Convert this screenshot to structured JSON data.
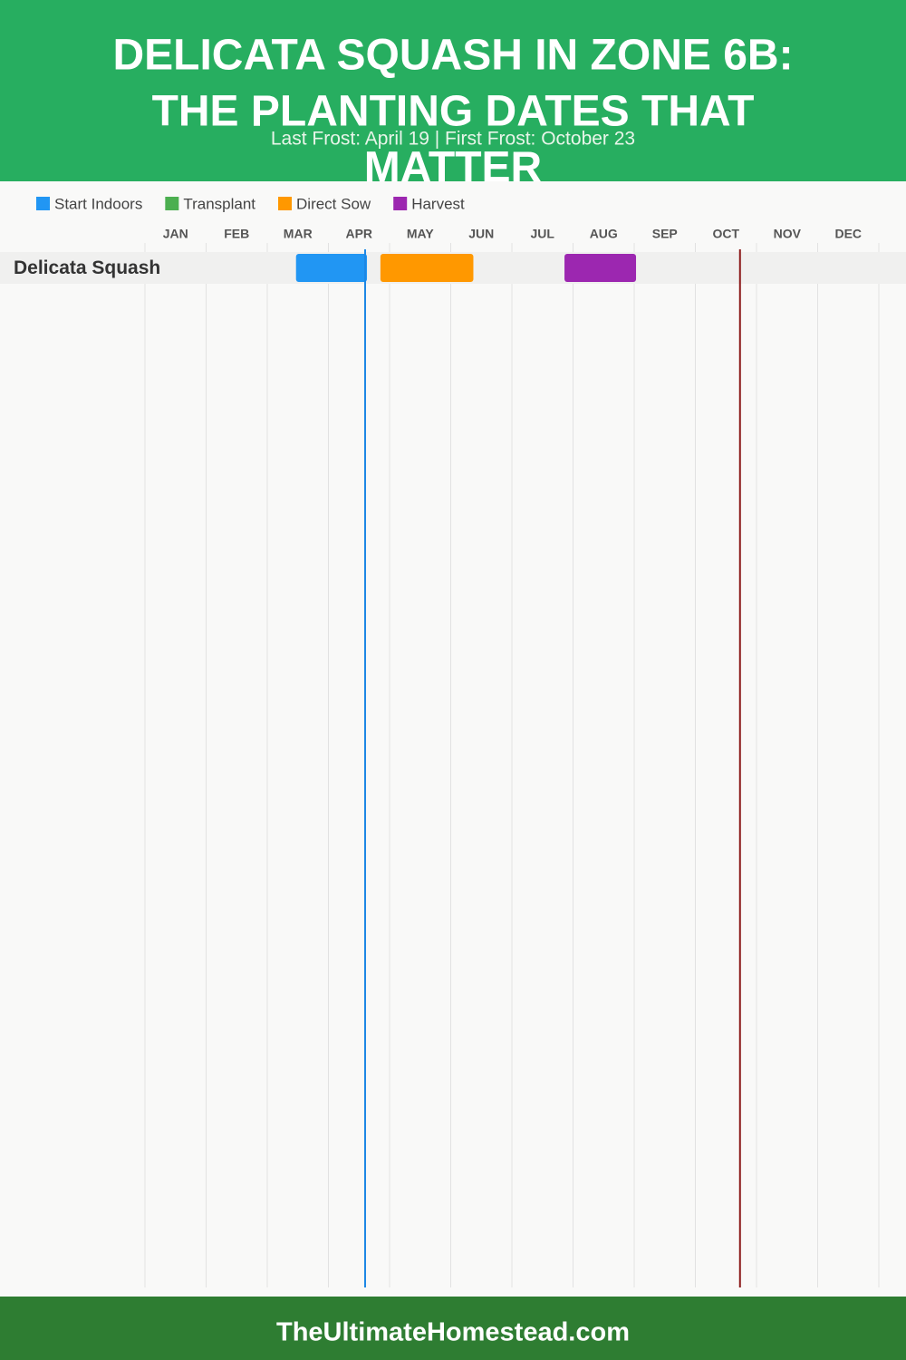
{
  "chart_data": {
    "type": "gantt",
    "title_lines": [
      "DELICATA SQUASH IN ZONE 6B:",
      "THE PLANTING DATES THAT",
      "MATTER"
    ],
    "subtitle": "Last Frost: April 19 | First Frost: October 23",
    "months": [
      "JAN",
      "FEB",
      "MAR",
      "APR",
      "MAY",
      "JUN",
      "JUL",
      "AUG",
      "SEP",
      "OCT",
      "NOV",
      "DEC"
    ],
    "xlim": [
      0,
      12
    ],
    "categories": [
      "Delicata Squash"
    ],
    "series": [
      {
        "name": "Start Indoors",
        "color": "#2196f3",
        "ranges": [
          [
            2.47,
            3.63
          ]
        ]
      },
      {
        "name": "Transplant",
        "color": "#4caf50",
        "ranges": []
      },
      {
        "name": "Direct Sow",
        "color": "#ff9800",
        "ranges": [
          [
            3.85,
            5.37
          ]
        ]
      },
      {
        "name": "Harvest",
        "color": "#9c27b0",
        "ranges": [
          [
            6.86,
            8.03
          ]
        ]
      }
    ],
    "frost_lines": [
      {
        "value": 3.6,
        "color": "#1e88e5"
      },
      {
        "value": 9.73,
        "color": "#8b1a1a"
      }
    ],
    "footer": "TheUltimateHomestead.com"
  }
}
